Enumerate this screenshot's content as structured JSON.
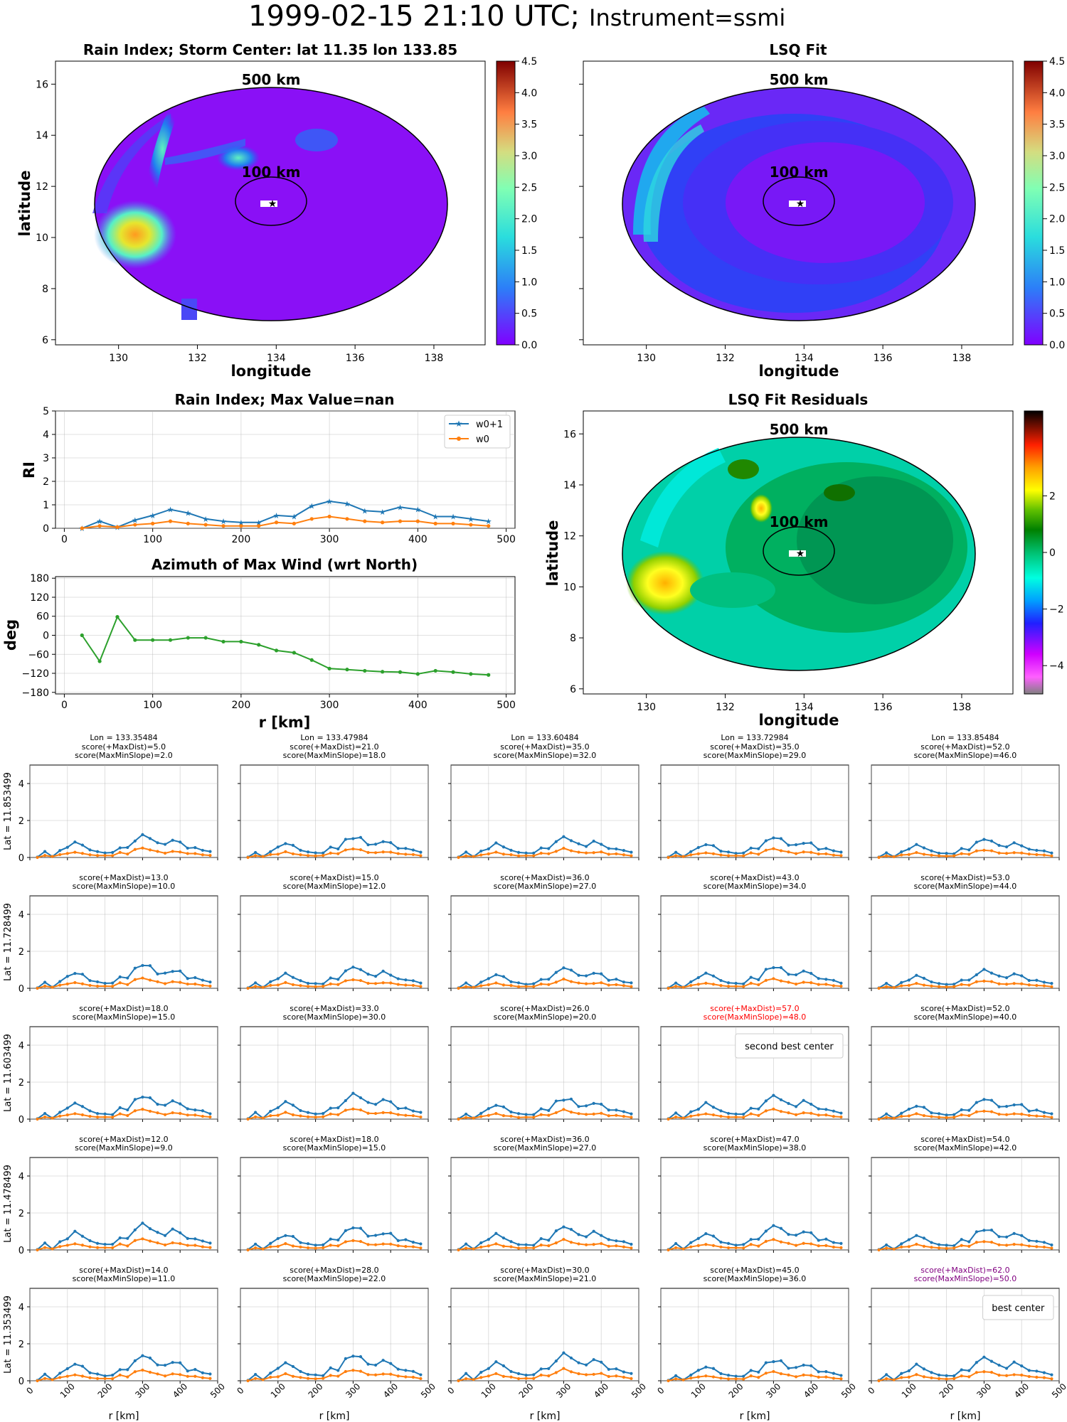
{
  "header": {
    "datetime": "1999-02-15 21:10 UTC;",
    "instrument": "Instrument=ssmi"
  },
  "colors": {
    "w0p1": "#1f77b4",
    "w0": "#ff7f0e",
    "azimuth": "#2ca02c",
    "second_best": "#ff0000",
    "best": "#800080",
    "grid": "#b0b0b0"
  },
  "chart_data": [
    {
      "id": "rain-index-map",
      "type": "heatmap",
      "title": "Rain Index; Storm Center: lat 11.35 lon 133.85",
      "xlabel": "longitude",
      "ylabel": "latitude",
      "xticks": [
        130,
        132,
        134,
        136,
        138
      ],
      "yticks": [
        6,
        8,
        10,
        12,
        14,
        16
      ],
      "xlim": [
        128.4,
        139.3
      ],
      "ylim": [
        5.8,
        16.9
      ],
      "center": {
        "lon": 133.85,
        "lat": 11.35
      },
      "ring_labels": [
        "500 km",
        "100 km"
      ],
      "colorbar": {
        "min": 0.0,
        "max": 4.5,
        "ticks": [
          "0.0",
          "0.5",
          "1.0",
          "1.5",
          "2.0",
          "2.5",
          "3.0",
          "3.5",
          "4.0",
          "4.5"
        ],
        "colormap": "rainbow"
      },
      "features": [
        {
          "lon": 130.5,
          "lat": 10.3,
          "value": 3.0
        },
        {
          "lon": 131.0,
          "lat": 12.8,
          "value": 1.4
        },
        {
          "lon": 133.3,
          "lat": 13.2,
          "value": 2.0
        },
        {
          "lon": 134.6,
          "lat": 13.6,
          "value": 1.0
        }
      ]
    },
    {
      "id": "lsq-fit-map",
      "type": "heatmap",
      "title": "LSQ Fit",
      "xticks": [
        130,
        132,
        134,
        136,
        138
      ],
      "xlabel": "longitude",
      "ring_labels": [
        "500 km",
        "100 km"
      ],
      "colorbar": {
        "min": 0.0,
        "max": 4.5,
        "ticks": [
          "0.0",
          "0.5",
          "1.0",
          "1.5",
          "2.0",
          "2.5",
          "3.0",
          "3.5",
          "4.0",
          "4.5"
        ],
        "colormap": "rainbow"
      }
    },
    {
      "id": "rain-index-profile",
      "type": "line",
      "title": "Rain Index; Max Value=nan",
      "ylabel": "RI",
      "xticks": [
        0,
        100,
        200,
        300,
        400,
        500
      ],
      "yticks": [
        0,
        1,
        2,
        3,
        4,
        5
      ],
      "xlim": [
        -10,
        510
      ],
      "ylim": [
        0,
        5
      ],
      "legend": "top-right",
      "x": [
        20,
        40,
        60,
        80,
        100,
        120,
        140,
        160,
        180,
        200,
        220,
        240,
        260,
        280,
        300,
        320,
        340,
        360,
        380,
        400,
        420,
        440,
        460,
        480
      ],
      "series": [
        {
          "name": "w0+1",
          "values": [
            0.0,
            0.3,
            0.05,
            0.35,
            0.55,
            0.8,
            0.65,
            0.4,
            0.3,
            0.25,
            0.25,
            0.55,
            0.5,
            0.95,
            1.15,
            1.05,
            0.75,
            0.7,
            0.9,
            0.8,
            0.5,
            0.5,
            0.4,
            0.3
          ]
        },
        {
          "name": "w0",
          "values": [
            0.0,
            0.1,
            0.05,
            0.15,
            0.2,
            0.3,
            0.2,
            0.15,
            0.1,
            0.1,
            0.1,
            0.25,
            0.2,
            0.4,
            0.5,
            0.4,
            0.3,
            0.25,
            0.3,
            0.3,
            0.2,
            0.2,
            0.15,
            0.1
          ]
        }
      ]
    },
    {
      "id": "azimuth-profile",
      "type": "line",
      "title": "Azimuth of Max Wind (wrt North)",
      "xlabel": "r [km]",
      "ylabel": "deg",
      "xticks": [
        0,
        100,
        200,
        300,
        400,
        500
      ],
      "yticks": [
        -180,
        -120,
        -60,
        0,
        60,
        120,
        180
      ],
      "xlim": [
        -10,
        510
      ],
      "ylim": [
        -185,
        185
      ],
      "x": [
        20,
        40,
        60,
        80,
        100,
        120,
        140,
        160,
        180,
        200,
        220,
        240,
        260,
        280,
        300,
        320,
        340,
        360,
        380,
        400,
        420,
        440,
        460,
        480
      ],
      "values": [
        0,
        -82,
        58,
        -15,
        -15,
        -15,
        -8,
        -8,
        -20,
        -20,
        -30,
        -48,
        -55,
        -78,
        -105,
        -108,
        -112,
        -115,
        -116,
        -122,
        -112,
        -116,
        -122,
        -125
      ]
    },
    {
      "id": "lsq-residuals-map",
      "type": "heatmap",
      "title": "LSQ Fit Residuals",
      "xlabel": "longitude",
      "ylabel": "latitude",
      "xticks": [
        130,
        132,
        134,
        136,
        138
      ],
      "yticks": [
        6,
        8,
        10,
        12,
        14,
        16
      ],
      "ring_labels": [
        "500 km",
        "100 km"
      ],
      "colorbar": {
        "min": -5,
        "max": 5,
        "ticks": [
          "2",
          "0",
          "−2",
          "−4"
        ],
        "colormap": "gist_ncar"
      }
    }
  ],
  "grid_panels": {
    "xlabel": "r [km]",
    "xticks": [
      0,
      100,
      200,
      300,
      400,
      500
    ],
    "yticks": [
      0,
      2,
      4
    ],
    "ylim": [
      0,
      5
    ],
    "column_lons": [
      "Lon = 133.35484",
      "Lon = 133.47984",
      "Lon = 133.60484",
      "Lon = 133.72984",
      "Lon = 133.85484"
    ],
    "row_lats": [
      "Lat = 11.853499",
      "Lat = 11.728499",
      "Lat = 11.603499",
      "Lat = 11.478499",
      "Lat = 11.353499"
    ],
    "scores": [
      [
        [
          "score(+MaxDist)=5.0",
          "score(MaxMinSlope)=2.0"
        ],
        [
          "score(+MaxDist)=21.0",
          "score(MaxMinSlope)=18.0"
        ],
        [
          "score(+MaxDist)=35.0",
          "score(MaxMinSlope)=32.0"
        ],
        [
          "score(+MaxDist)=35.0",
          "score(MaxMinSlope)=29.0"
        ],
        [
          "score(+MaxDist)=52.0",
          "score(MaxMinSlope)=46.0"
        ]
      ],
      [
        [
          "score(+MaxDist)=13.0",
          "score(MaxMinSlope)=10.0"
        ],
        [
          "score(+MaxDist)=15.0",
          "score(MaxMinSlope)=12.0"
        ],
        [
          "score(+MaxDist)=36.0",
          "score(MaxMinSlope)=27.0"
        ],
        [
          "score(+MaxDist)=43.0",
          "score(MaxMinSlope)=34.0"
        ],
        [
          "score(+MaxDist)=53.0",
          "score(MaxMinSlope)=44.0"
        ]
      ],
      [
        [
          "score(+MaxDist)=18.0",
          "score(MaxMinSlope)=15.0"
        ],
        [
          "score(+MaxDist)=33.0",
          "score(MaxMinSlope)=30.0"
        ],
        [
          "score(+MaxDist)=26.0",
          "score(MaxMinSlope)=20.0"
        ],
        [
          "score(+MaxDist)=57.0",
          "score(MaxMinSlope)=48.0"
        ],
        [
          "score(+MaxDist)=52.0",
          "score(MaxMinSlope)=40.0"
        ]
      ],
      [
        [
          "score(+MaxDist)=12.0",
          "score(MaxMinSlope)=9.0"
        ],
        [
          "score(+MaxDist)=18.0",
          "score(MaxMinSlope)=15.0"
        ],
        [
          "score(+MaxDist)=36.0",
          "score(MaxMinSlope)=27.0"
        ],
        [
          "score(+MaxDist)=47.0",
          "score(MaxMinSlope)=38.0"
        ],
        [
          "score(+MaxDist)=54.0",
          "score(MaxMinSlope)=42.0"
        ]
      ],
      [
        [
          "score(+MaxDist)=14.0",
          "score(MaxMinSlope)=11.0"
        ],
        [
          "score(+MaxDist)=28.0",
          "score(MaxMinSlope)=22.0"
        ],
        [
          "score(+MaxDist)=30.0",
          "score(MaxMinSlope)=21.0"
        ],
        [
          "score(+MaxDist)=45.0",
          "score(MaxMinSlope)=36.0"
        ],
        [
          "score(+MaxDist)=62.0",
          "score(MaxMinSlope)=50.0"
        ]
      ]
    ],
    "highlights": [
      {
        "row": 2,
        "col": 3,
        "label": "second best center",
        "color_key": "second_best"
      },
      {
        "row": 4,
        "col": 4,
        "label": "best center",
        "color_key": "best"
      }
    ],
    "peaks": [
      [
        1.15,
        1.1,
        1.05,
        1.05,
        0.95
      ],
      [
        1.25,
        1.1,
        1.05,
        1.15,
        0.95
      ],
      [
        1.2,
        1.3,
        1.1,
        1.2,
        1.05
      ],
      [
        1.35,
        1.2,
        1.2,
        1.25,
        1.1
      ],
      [
        1.3,
        1.35,
        1.4,
        1.1,
        1.2
      ]
    ]
  }
}
